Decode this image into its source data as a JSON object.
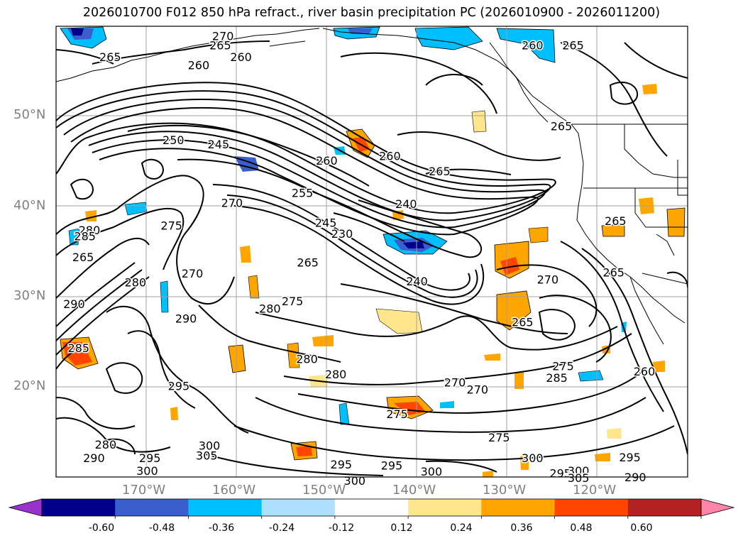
{
  "title": "2026010700 F012 850 hPa refract., river basin precipitation PC (2026010900 - 2026011200)",
  "lat_labels": [
    "50°N",
    "40°N",
    "30°N",
    "20°N"
  ],
  "lon_labels": [
    "170°W",
    "160°W",
    "150°W",
    "140°W",
    "130°W",
    "120°W"
  ],
  "colorbar": {
    "ticks": [
      "-0.60",
      "-0.48",
      "-0.36",
      "-0.24",
      "-0.12",
      "0.12",
      "0.24",
      "0.36",
      "0.48",
      "0.60"
    ],
    "colors": [
      "#9932CC",
      "#00008B",
      "#3A5FCD",
      "#00BFFF",
      "#ADDFFF",
      "#FFFFFF",
      "#FFE68C",
      "#FFA500",
      "#FF4500",
      "#B22222",
      "#FF85A8"
    ]
  },
  "contour_labels": [
    {
      "text": "265",
      "lat": 56.5,
      "lon": -174.0
    },
    {
      "text": "270",
      "lat": 58.8,
      "lon": -161.5
    },
    {
      "text": "265",
      "lat": 57.8,
      "lon": -161.8
    },
    {
      "text": "260",
      "lat": 55.6,
      "lon": -164.2
    },
    {
      "text": "260",
      "lat": 56.5,
      "lon": -159.5
    },
    {
      "text": "260",
      "lat": 57.8,
      "lon": -127.2
    },
    {
      "text": "265",
      "lat": 57.8,
      "lon": -122.7
    },
    {
      "text": "250",
      "lat": 47.3,
      "lon": -167.0
    },
    {
      "text": "245",
      "lat": 46.8,
      "lon": -162.0
    },
    {
      "text": "260",
      "lat": 45.0,
      "lon": -150.0
    },
    {
      "text": "260",
      "lat": 45.5,
      "lon": -143.0
    },
    {
      "text": "265",
      "lat": 43.8,
      "lon": -137.5
    },
    {
      "text": "265",
      "lat": 48.8,
      "lon": -124.0
    },
    {
      "text": "255",
      "lat": 41.4,
      "lon": -152.7
    },
    {
      "text": "240",
      "lat": 40.2,
      "lon": -141.2
    },
    {
      "text": "270",
      "lat": 40.3,
      "lon": -160.5
    },
    {
      "text": "245",
      "lat": 38.1,
      "lon": -150.1
    },
    {
      "text": "230",
      "lat": 36.9,
      "lon": -148.3
    },
    {
      "text": "265",
      "lat": 38.3,
      "lon": -118.0
    },
    {
      "text": "275",
      "lat": 37.8,
      "lon": -167.2
    },
    {
      "text": "280",
      "lat": 37.3,
      "lon": -176.3
    },
    {
      "text": "285",
      "lat": 36.6,
      "lon": -176.8
    },
    {
      "text": "265",
      "lat": 34.3,
      "lon": -177.0
    },
    {
      "text": "265",
      "lat": 33.7,
      "lon": -152.1
    },
    {
      "text": "270",
      "lat": 32.5,
      "lon": -164.9
    },
    {
      "text": "240",
      "lat": 31.6,
      "lon": -140.0
    },
    {
      "text": "270",
      "lat": 31.8,
      "lon": -125.5
    },
    {
      "text": "265",
      "lat": 32.6,
      "lon": -118.2
    },
    {
      "text": "280",
      "lat": 31.5,
      "lon": -171.2
    },
    {
      "text": "290",
      "lat": 29.1,
      "lon": -178.0
    },
    {
      "text": "275",
      "lat": 29.4,
      "lon": -153.8
    },
    {
      "text": "280",
      "lat": 28.6,
      "lon": -156.3
    },
    {
      "text": "290",
      "lat": 27.5,
      "lon": -165.6
    },
    {
      "text": "265",
      "lat": 27.1,
      "lon": -128.3
    },
    {
      "text": "285",
      "lat": 24.2,
      "lon": -177.5
    },
    {
      "text": "280",
      "lat": 23.0,
      "lon": -152.2
    },
    {
      "text": "280",
      "lat": 21.3,
      "lon": -149.0
    },
    {
      "text": "275",
      "lat": 22.2,
      "lon": -123.8
    },
    {
      "text": "260",
      "lat": 21.6,
      "lon": -114.8
    },
    {
      "text": "285",
      "lat": 20.9,
      "lon": -124.5
    },
    {
      "text": "295",
      "lat": 20.0,
      "lon": -166.4
    },
    {
      "text": "270",
      "lat": 20.4,
      "lon": -135.8
    },
    {
      "text": "270",
      "lat": 19.6,
      "lon": -133.3
    },
    {
      "text": "275",
      "lat": 16.9,
      "lon": -142.2
    },
    {
      "text": "280",
      "lat": 13.5,
      "lon": -174.5
    },
    {
      "text": "290",
      "lat": 12.0,
      "lon": -175.8
    },
    {
      "text": "300",
      "lat": 13.4,
      "lon": -163.0
    },
    {
      "text": "305",
      "lat": 12.3,
      "lon": -163.3
    },
    {
      "text": "295",
      "lat": 12.0,
      "lon": -169.6
    },
    {
      "text": "300",
      "lat": 10.6,
      "lon": -169.9
    },
    {
      "text": "295",
      "lat": 11.3,
      "lon": -148.4
    },
    {
      "text": "295",
      "lat": 11.2,
      "lon": -142.8
    },
    {
      "text": "275",
      "lat": 14.3,
      "lon": -130.9
    },
    {
      "text": "300",
      "lat": 12.0,
      "lon": -127.2
    },
    {
      "text": "300",
      "lat": 10.5,
      "lon": -138.4
    },
    {
      "text": "300",
      "lat": 9.5,
      "lon": -146.9
    },
    {
      "text": "295",
      "lat": 10.3,
      "lon": -124.1
    },
    {
      "text": "300",
      "lat": 10.6,
      "lon": -122.1
    },
    {
      "text": "305",
      "lat": 9.8,
      "lon": -122.1
    },
    {
      "text": "295",
      "lat": 12.1,
      "lon": -116.4
    },
    {
      "text": "290",
      "lat": 9.9,
      "lon": -115.8
    }
  ]
}
